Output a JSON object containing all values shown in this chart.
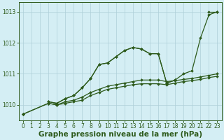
{
  "x": [
    0,
    1,
    2,
    3,
    4,
    5,
    6,
    7,
    8,
    9,
    10,
    11,
    12,
    13,
    14,
    15,
    16,
    17,
    18,
    19,
    20,
    21,
    22,
    23
  ],
  "line1": [
    1009.7,
    null,
    null,
    1010.1,
    1010.05,
    1010.2,
    1010.3,
    1010.55,
    1010.85,
    1011.3,
    1011.35,
    1011.55,
    1011.75,
    1011.85,
    1011.8,
    1011.65,
    1011.65,
    1010.7,
    1010.8,
    null,
    null,
    null,
    1013.0,
    1013.0
  ],
  "line2": [
    1009.7,
    null,
    null,
    1010.1,
    1010.05,
    1010.2,
    1010.3,
    1010.55,
    1010.85,
    1011.3,
    1011.35,
    1011.55,
    1011.75,
    1011.85,
    1011.8,
    1011.65,
    1011.65,
    1010.7,
    1010.8,
    1011.0,
    1011.1,
    1012.15,
    1012.9,
    1013.0
  ],
  "line3_x": [
    0,
    3,
    4,
    5,
    6,
    7,
    8,
    9,
    10,
    11,
    12,
    13,
    14,
    15,
    16,
    17,
    18,
    19,
    20,
    21,
    22,
    23
  ],
  "line3_y": [
    1009.7,
    1010.05,
    1010.0,
    1010.1,
    1010.15,
    1010.25,
    1010.4,
    1010.5,
    1010.6,
    1010.65,
    1010.7,
    1010.75,
    1010.8,
    1010.8,
    1010.8,
    1010.75,
    1010.78,
    1010.82,
    1010.85,
    1010.9,
    1010.95,
    1011.0
  ],
  "line4_x": [
    0,
    3,
    4,
    5,
    6,
    7,
    8,
    9,
    10,
    11,
    12,
    13,
    14,
    15,
    16,
    17,
    18,
    19,
    20,
    21,
    22,
    23
  ],
  "line4_y": [
    1009.7,
    1010.05,
    1010.0,
    1010.05,
    1010.1,
    1010.15,
    1010.3,
    1010.4,
    1010.5,
    1010.55,
    1010.6,
    1010.65,
    1010.68,
    1010.68,
    1010.68,
    1010.65,
    1010.7,
    1010.75,
    1010.78,
    1010.82,
    1010.88,
    1010.92
  ],
  "ylim": [
    1009.5,
    1013.3
  ],
  "xlim": [
    -0.5,
    23.5
  ],
  "yticks": [
    1010,
    1011,
    1012,
    1013
  ],
  "xticks": [
    0,
    1,
    2,
    3,
    4,
    5,
    6,
    7,
    8,
    9,
    10,
    11,
    12,
    13,
    14,
    15,
    16,
    17,
    18,
    19,
    20,
    21,
    22,
    23
  ],
  "line_color": "#2d5a1b",
  "bg_color": "#d4eef4",
  "grid_color": "#aecfd8",
  "xlabel": "Graphe pression niveau de la mer (hPa)",
  "xlabel_fontsize": 7.5,
  "tick_fontsize": 5.5,
  "marker": "D",
  "markersize": 2.0,
  "linewidth": 0.9
}
